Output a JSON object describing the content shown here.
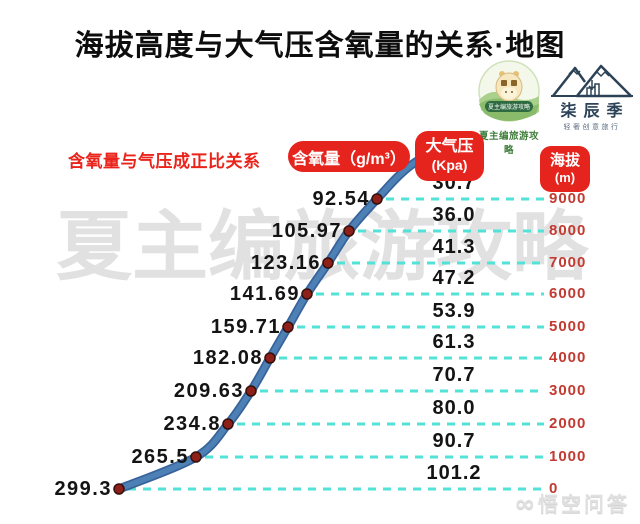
{
  "title": "海拔高度与大气压含氧量的关系·地图",
  "header": {
    "note": "含氧量与气压成正比关系",
    "col_oxygen": "含氧量（g/m³）",
    "col_pressure_1": "大气压",
    "col_pressure_2": "(Kpa)",
    "col_altitude_1": "海拔",
    "col_altitude_2": "(m)"
  },
  "logos": {
    "left_caption": "夏主编旅游攻略",
    "left_banner": "夏主编旅游攻略",
    "right_title": "柒辰季",
    "right_subtitle": "轻奢创意旅行"
  },
  "watermarks": {
    "center": "夏主编旅游攻略",
    "bottom_right_symbol": "∞",
    "bottom_right": "悟空问答"
  },
  "chart_data": {
    "type": "line",
    "title": "海拔高度与大气压含氧量的关系",
    "note": "含氧量与气压成正比关系",
    "columns": [
      "含氧量(g/m³)",
      "大气压(Kpa)",
      "海拔(m)"
    ],
    "curve_shape": "S-curve of oxygen content rising as altitude drops",
    "grid": "dashed horizontal leader lines from each data point to altitude labels",
    "oxygen_g_per_m3": [
      92.54,
      105.97,
      123.16,
      141.69,
      159.71,
      182.08,
      209.63,
      234.8,
      265.5,
      299.3
    ],
    "pressure_kpa": [
      30.7,
      36.0,
      41.3,
      47.2,
      53.9,
      61.3,
      70.7,
      80.0,
      90.7,
      101.2
    ],
    "altitude_m": [
      9000,
      8000,
      7000,
      6000,
      5000,
      4000,
      3000,
      2000,
      1000,
      0
    ],
    "rows": [
      {
        "oxygen": "92.54",
        "pressure": "30.7",
        "altitude": "9000"
      },
      {
        "oxygen": "105.97",
        "pressure": "36.0",
        "altitude": "8000"
      },
      {
        "oxygen": "123.16",
        "pressure": "41.3",
        "altitude": "7000"
      },
      {
        "oxygen": "141.69",
        "pressure": "47.2",
        "altitude": "6000"
      },
      {
        "oxygen": "159.71",
        "pressure": "53.9",
        "altitude": "5000"
      },
      {
        "oxygen": "182.08",
        "pressure": "61.3",
        "altitude": "4000"
      },
      {
        "oxygen": "209.63",
        "pressure": "70.7",
        "altitude": "3000"
      },
      {
        "oxygen": "234.8",
        "pressure": "80.0",
        "altitude": "2000"
      },
      {
        "oxygen": "265.5",
        "pressure": "90.7",
        "altitude": "1000"
      },
      {
        "oxygen": "299.3",
        "pressure": "101.2",
        "altitude": "0"
      }
    ]
  },
  "colors": {
    "badge_red": "#e5241d",
    "note_red": "#ea231b",
    "altitude_red": "#c23a31",
    "curve_blue": "#4d80b4",
    "curve_edge_blue": "#38639b",
    "dot_dark_red": "#8e201a",
    "dash_cyan": "#52e2d6",
    "watermark_gray": "#e1e1e1"
  }
}
